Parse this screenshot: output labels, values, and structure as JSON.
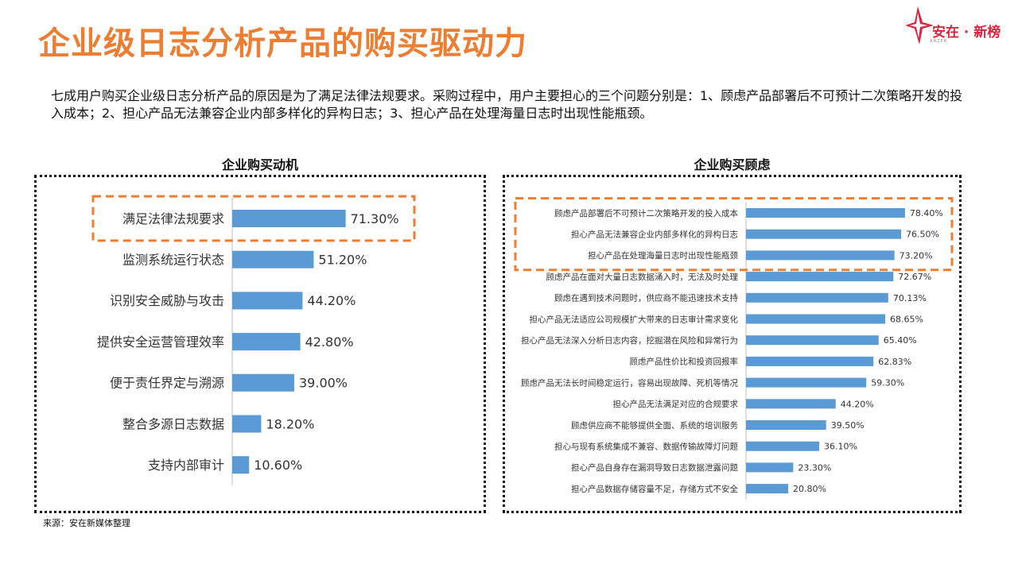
{
  "title": "企业级日志分析产品的购买驱动力",
  "logo": {
    "text": "安在 · 新榜",
    "sub": "ANZER",
    "accent": "#D7263D"
  },
  "description": "七成用户购买企业级日志分析产品的原因是为了满足法律法规要求。采购过程中，用户主要担心的三个问题分别是：1、顾虑产品部署后不可预计二次策略开发的投入成本；2、担心产品无法兼容企业内部多样化的异构日志；3、担心产品在处理海量日志时出现性能瓶颈。",
  "source": "来源：安在新媒体整理",
  "colors": {
    "bar": "#5B9BD5",
    "title": "#ED7D31",
    "highlight": "#ED7D31"
  },
  "chart_data": [
    {
      "type": "bar",
      "orientation": "horizontal",
      "title": "企业购买动机",
      "categories": [
        "满足法律法规要求",
        "监测系统运行状态",
        "识别安全威胁与攻击",
        "提供安全运营管理效率",
        "便于责任界定与溯源",
        "整合多源日志数据",
        "支持内部审计"
      ],
      "values": [
        71.3,
        51.2,
        44.2,
        42.8,
        39.0,
        18.2,
        10.6
      ],
      "value_labels": [
        "71.30%",
        "51.20%",
        "44.20%",
        "42.80%",
        "39.00%",
        "18.20%",
        "10.60%"
      ],
      "highlighted_count": 1,
      "xlim": [
        0,
        100
      ]
    },
    {
      "type": "bar",
      "orientation": "horizontal",
      "title": "企业购买顾虑",
      "categories": [
        "顾虑产品部署后不可预计二次策略开发的投入成本",
        "担心产品无法兼容企业内部多样化的异构日志",
        "担心产品在处理海量日志时出现性能瓶颈",
        "顾虑产品在面对大量日志数据涌入时，无法及时处理",
        "顾虑在遇到技术问题时，供应商不能迅速技术支持",
        "担心产品无法适应公司规模扩大带来的日志审计需求变化",
        "担心产品无法深入分析日志内容，挖掘潜在风险和异常行为",
        "顾虑产品性价比和投资回报率",
        "顾虑产品无法长时间稳定运行，容易出现故障、死机等情况",
        "担心产品无法满足对应的合规要求",
        "顾虑供应商不能够提供全面、系统的培训服务",
        "担心与现有系统集成不兼容、数据传输故障灯问题",
        "担心产品自身存在漏洞导致日志数据泄露问题",
        "担心产品数据存储容量不足，存储方式不安全"
      ],
      "values": [
        78.4,
        76.5,
        73.2,
        72.67,
        70.13,
        68.65,
        65.4,
        62.83,
        59.3,
        44.2,
        39.5,
        36.1,
        23.3,
        20.8
      ],
      "value_labels": [
        "78.40%",
        "76.50%",
        "73.20%",
        "72.67%",
        "70.13%",
        "68.65%",
        "65.40%",
        "62.83%",
        "59.30%",
        "44.20%",
        "39.50%",
        "36.10%",
        "23.30%",
        "20.80%"
      ],
      "highlighted_count": 3,
      "xlim": [
        0,
        100
      ]
    }
  ]
}
